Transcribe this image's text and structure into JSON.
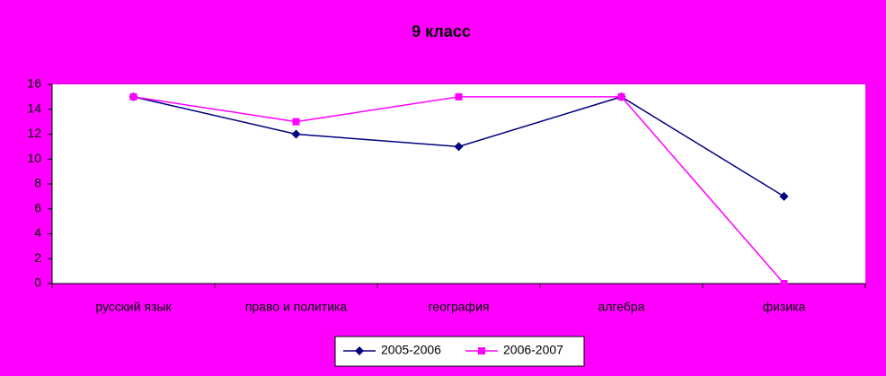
{
  "chart_data": {
    "type": "line",
    "title": "9 класс",
    "categories": [
      "русский язык",
      "право и политика",
      "география",
      "алгебра",
      "физика"
    ],
    "series": [
      {
        "name": "2005-2006",
        "color": "#000080",
        "marker": "diamond",
        "values": [
          15,
          12,
          11,
          15,
          7
        ]
      },
      {
        "name": "2006-2007",
        "color": "#ff00ff",
        "marker": "square",
        "values": [
          15,
          13,
          15,
          15,
          0
        ]
      }
    ],
    "ylim": [
      0,
      16
    ],
    "yticks": [
      0,
      2,
      4,
      6,
      8,
      10,
      12,
      14,
      16
    ],
    "grid": false,
    "legend": "bottom"
  }
}
